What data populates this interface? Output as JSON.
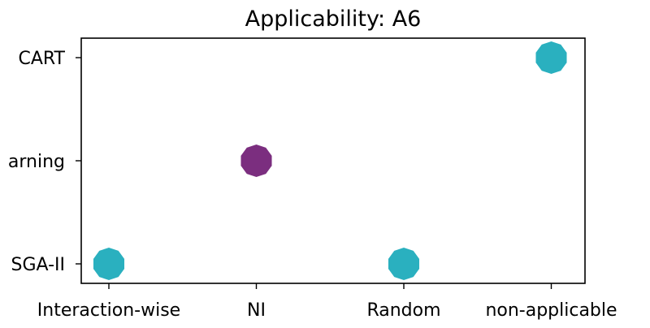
{
  "chart_data": {
    "type": "scatter",
    "title": "Applicability: A6",
    "xlabel": "",
    "ylabel": "",
    "x_categories": [
      "Interaction-wise",
      "NI",
      "Random",
      "non-applicable"
    ],
    "y_categories": [
      "NSGA-II",
      "Learning",
      "CART"
    ],
    "y_visible_tick_labels": [
      "SGA-II",
      "arning",
      "CART"
    ],
    "points": [
      {
        "x": "Interaction-wise",
        "y": "NSGA-II",
        "color": "#2ab0bf"
      },
      {
        "x": "Random",
        "y": "NSGA-II",
        "color": "#2ab0bf"
      },
      {
        "x": "NI",
        "y": "Learning",
        "color": "#7b2e7f"
      },
      {
        "x": "non-applicable",
        "y": "CART",
        "color": "#2ab0bf"
      }
    ],
    "marker": "decagon",
    "grid": false,
    "legend": "none"
  }
}
